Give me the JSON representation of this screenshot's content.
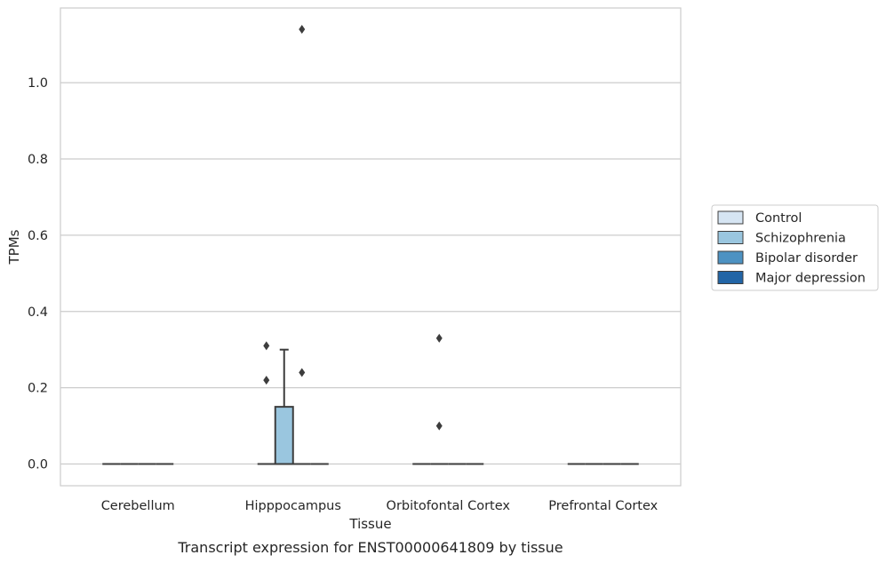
{
  "chart_data": {
    "type": "box",
    "title": "",
    "caption": "Transcript expression for ENST00000641809 by tissue",
    "xlabel": "Tissue",
    "ylabel": "TPMs",
    "ylim": [
      -0.057,
      1.196
    ],
    "yticks": [
      "0.0",
      "0.2",
      "0.4",
      "0.6",
      "0.8",
      "1.0"
    ],
    "grid": true,
    "categories": [
      "Cerebellum",
      "Hipppocampus",
      "Orbitofontal Cortex",
      "Prefrontal Cortex"
    ],
    "legend": {
      "placement": "right",
      "entries": [
        {
          "name": "Control",
          "color": "#d6e5f3"
        },
        {
          "name": "Schizophrenia",
          "color": "#9ac6df"
        },
        {
          "name": "Bipolar disorder",
          "color": "#4d92c2"
        },
        {
          "name": "Major depression",
          "color": "#2265a6"
        }
      ]
    },
    "boxes": [
      {
        "category": "Cerebellum",
        "group": "Control",
        "q1": 0,
        "median": 0,
        "q3": 0,
        "whisker_low": 0,
        "whisker_high": 0,
        "outliers": []
      },
      {
        "category": "Cerebellum",
        "group": "Schizophrenia",
        "q1": 0,
        "median": 0,
        "q3": 0,
        "whisker_low": 0,
        "whisker_high": 0,
        "outliers": []
      },
      {
        "category": "Cerebellum",
        "group": "Bipolar disorder",
        "q1": 0,
        "median": 0,
        "q3": 0,
        "whisker_low": 0,
        "whisker_high": 0,
        "outliers": []
      },
      {
        "category": "Cerebellum",
        "group": "Major depression",
        "q1": 0,
        "median": 0,
        "q3": 0,
        "whisker_low": 0,
        "whisker_high": 0,
        "outliers": []
      },
      {
        "category": "Hipppocampus",
        "group": "Control",
        "q1": 0,
        "median": 0,
        "q3": 0,
        "whisker_low": 0,
        "whisker_high": 0,
        "outliers": [
          0.31,
          0.22
        ]
      },
      {
        "category": "Hipppocampus",
        "group": "Schizophrenia",
        "q1": 0,
        "median": 0,
        "q3": 0.15,
        "whisker_low": 0,
        "whisker_high": 0.3,
        "outliers": []
      },
      {
        "category": "Hipppocampus",
        "group": "Bipolar disorder",
        "q1": 0,
        "median": 0,
        "q3": 0,
        "whisker_low": 0,
        "whisker_high": 0,
        "outliers": [
          1.14,
          0.24
        ]
      },
      {
        "category": "Hipppocampus",
        "group": "Major depression",
        "q1": 0,
        "median": 0,
        "q3": 0,
        "whisker_low": 0,
        "whisker_high": 0,
        "outliers": []
      },
      {
        "category": "Orbitofontal Cortex",
        "group": "Control",
        "q1": 0,
        "median": 0,
        "q3": 0,
        "whisker_low": 0,
        "whisker_high": 0,
        "outliers": []
      },
      {
        "category": "Orbitofontal Cortex",
        "group": "Schizophrenia",
        "q1": 0,
        "median": 0,
        "q3": 0,
        "whisker_low": 0,
        "whisker_high": 0,
        "outliers": [
          0.33,
          0.1
        ]
      },
      {
        "category": "Orbitofontal Cortex",
        "group": "Bipolar disorder",
        "q1": 0,
        "median": 0,
        "q3": 0,
        "whisker_low": 0,
        "whisker_high": 0,
        "outliers": []
      },
      {
        "category": "Orbitofontal Cortex",
        "group": "Major depression",
        "q1": 0,
        "median": 0,
        "q3": 0,
        "whisker_low": 0,
        "whisker_high": 0,
        "outliers": []
      },
      {
        "category": "Prefrontal Cortex",
        "group": "Control",
        "q1": 0,
        "median": 0,
        "q3": 0,
        "whisker_low": 0,
        "whisker_high": 0,
        "outliers": []
      },
      {
        "category": "Prefrontal Cortex",
        "group": "Schizophrenia",
        "q1": 0,
        "median": 0,
        "q3": 0,
        "whisker_low": 0,
        "whisker_high": 0,
        "outliers": []
      },
      {
        "category": "Prefrontal Cortex",
        "group": "Bipolar disorder",
        "q1": 0,
        "median": 0,
        "q3": 0,
        "whisker_low": 0,
        "whisker_high": 0,
        "outliers": []
      },
      {
        "category": "Prefrontal Cortex",
        "group": "Major depression",
        "q1": 0,
        "median": 0,
        "q3": 0,
        "whisker_low": 0,
        "whisker_high": 0,
        "outliers": []
      }
    ]
  }
}
